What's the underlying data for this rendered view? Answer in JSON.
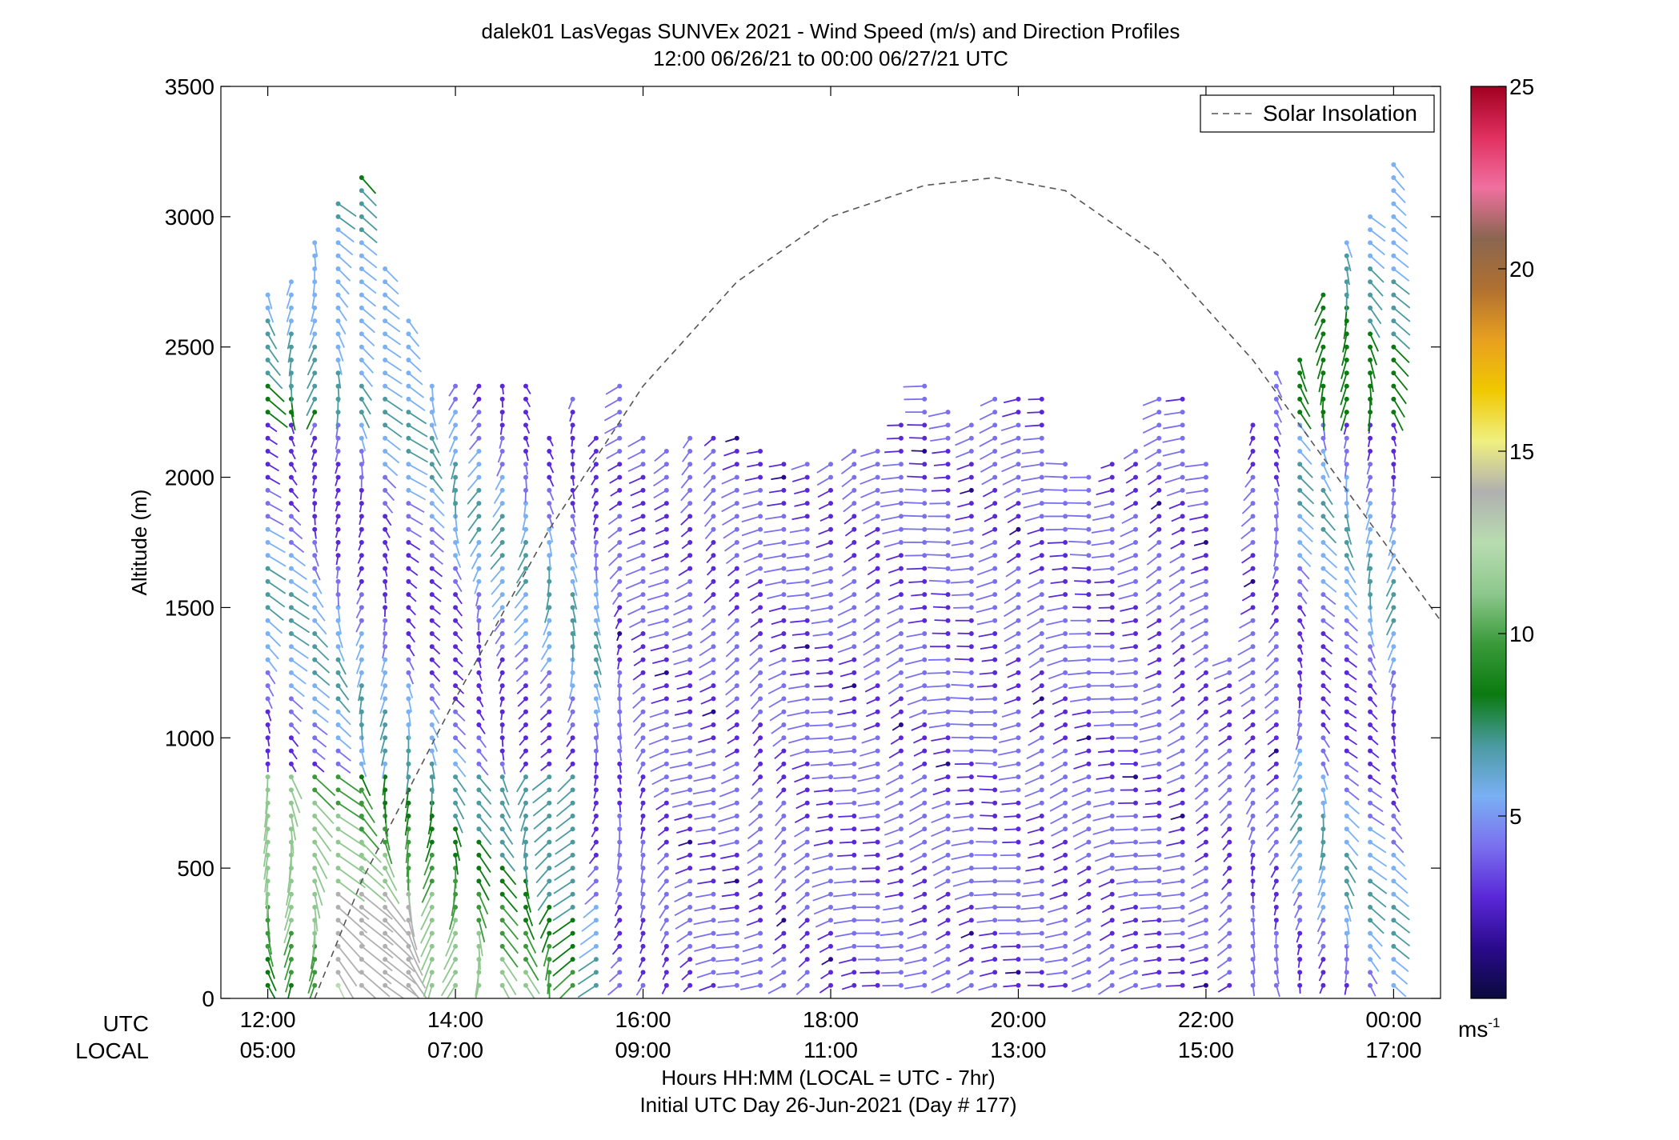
{
  "chart_data": {
    "type": "scatter",
    "title": "dalek01 LasVegas SUNVEx 2021 - Wind Speed (m/s) and Direction Profiles",
    "subtitle": "12:00 06/26/21 to 00:00 06/27/21  UTC",
    "ylabel": "Altitude (m)",
    "xlabel": "Hours HH:MM  (LOCAL = UTC - 7hr)",
    "xlabel2": "Initial UTC Day 26-Jun-2021 (Day # 177)",
    "row_labels": [
      "UTC",
      "LOCAL"
    ],
    "ylim": [
      0,
      3500
    ],
    "y_ticks": [
      "0",
      "500",
      "1000",
      "1500",
      "2000",
      "2500",
      "3000",
      "3500"
    ],
    "x_ticks_utc": [
      "12:00",
      "14:00",
      "16:00",
      "18:00",
      "20:00",
      "22:00",
      "00:00"
    ],
    "x_ticks_local": [
      "05:00",
      "07:00",
      "09:00",
      "11:00",
      "13:00",
      "15:00",
      "17:00"
    ],
    "x_range_hours": [
      11.5,
      24.5
    ],
    "legend": {
      "label": "Solar Insolation",
      "position": "top-right"
    },
    "colorbar": {
      "ticks": [
        "5",
        "10",
        "15",
        "20",
        "25"
      ],
      "range": [
        0,
        25
      ],
      "unit_label": "ms",
      "unit_exp": "-1",
      "stops": [
        "#0a0a3c",
        "#2a0a8c",
        "#5a28d8",
        "#7a70ee",
        "#7ab0f4",
        "#4a9aa0",
        "#0a7a10",
        "#3a9a3a",
        "#8ec88e",
        "#b8dcb0",
        "#b0b0b0",
        "#f0f080",
        "#f0c800",
        "#e8a020",
        "#b07030",
        "#8a6650",
        "#f070a0",
        "#e03060",
        "#a00020"
      ]
    },
    "profiles": [
      {
        "t": 12.0,
        "top": 2700,
        "dir": 160
      },
      {
        "t": 12.25,
        "top": 2750,
        "dir": 165
      },
      {
        "t": 12.5,
        "top": 2900,
        "dir": 170
      },
      {
        "t": 12.75,
        "top": 3050,
        "dir": 165
      },
      {
        "t": 13.0,
        "top": 3150,
        "dir": 170
      },
      {
        "t": 13.25,
        "top": 2800,
        "dir": 165
      },
      {
        "t": 13.5,
        "top": 2600,
        "dir": 160
      },
      {
        "t": 13.75,
        "top": 2350,
        "dir": 170
      },
      {
        "t": 14.0,
        "top": 2350,
        "dir": 175
      },
      {
        "t": 14.25,
        "top": 2350,
        "dir": 180
      },
      {
        "t": 14.5,
        "top": 2350,
        "dir": 180
      },
      {
        "t": 14.75,
        "top": 2350,
        "dir": 185
      },
      {
        "t": 15.0,
        "top": 2150,
        "dir": 190
      },
      {
        "t": 15.25,
        "top": 2300,
        "dir": 195
      },
      {
        "t": 15.5,
        "top": 2150,
        "dir": 195
      },
      {
        "t": 15.75,
        "top": 2350,
        "dir": 200
      },
      {
        "t": 16.0,
        "top": 2150,
        "dir": 210
      },
      {
        "t": 16.25,
        "top": 2100,
        "dir": 220
      },
      {
        "t": 16.5,
        "top": 2150,
        "dir": 225
      },
      {
        "t": 16.75,
        "top": 2150,
        "dir": 230
      },
      {
        "t": 17.0,
        "top": 2150,
        "dir": 235
      },
      {
        "t": 17.25,
        "top": 2100,
        "dir": 230
      },
      {
        "t": 17.5,
        "top": 2050,
        "dir": 230
      },
      {
        "t": 17.75,
        "top": 2050,
        "dir": 235
      },
      {
        "t": 18.0,
        "top": 2050,
        "dir": 240
      },
      {
        "t": 18.25,
        "top": 2100,
        "dir": 240
      },
      {
        "t": 18.5,
        "top": 2100,
        "dir": 245
      },
      {
        "t": 18.75,
        "top": 2200,
        "dir": 245
      },
      {
        "t": 19.0,
        "top": 2350,
        "dir": 250
      },
      {
        "t": 19.25,
        "top": 2250,
        "dir": 250
      },
      {
        "t": 19.5,
        "top": 2200,
        "dir": 250
      },
      {
        "t": 19.75,
        "top": 2300,
        "dir": 250
      },
      {
        "t": 20.0,
        "top": 2300,
        "dir": 245
      },
      {
        "t": 20.25,
        "top": 2300,
        "dir": 245
      },
      {
        "t": 20.5,
        "top": 2050,
        "dir": 250
      },
      {
        "t": 20.75,
        "top": 2000,
        "dir": 250
      },
      {
        "t": 21.0,
        "top": 2050,
        "dir": 245
      },
      {
        "t": 21.25,
        "top": 2100,
        "dir": 245
      },
      {
        "t": 21.5,
        "top": 2300,
        "dir": 240
      },
      {
        "t": 21.75,
        "top": 2300,
        "dir": 240
      },
      {
        "t": 22.0,
        "top": 2050,
        "dir": 235
      },
      {
        "t": 22.25,
        "top": 1300,
        "dir": 230
      },
      {
        "t": 22.5,
        "top": 2200,
        "dir": 200
      },
      {
        "t": 22.75,
        "top": 2400,
        "dir": 190
      },
      {
        "t": 23.0,
        "top": 2450,
        "dir": 175
      },
      {
        "t": 23.25,
        "top": 2700,
        "dir": 170
      },
      {
        "t": 23.5,
        "top": 2900,
        "dir": 165
      },
      {
        "t": 23.75,
        "top": 3000,
        "dir": 165
      },
      {
        "t": 24.0,
        "top": 3200,
        "dir": 170
      }
    ],
    "solar_insolation": {
      "x": [
        12.5,
        13.0,
        14.0,
        15.0,
        16.0,
        17.0,
        18.0,
        19.0,
        19.75,
        20.5,
        21.5,
        22.5,
        23.5,
        24.5
      ],
      "y": [
        0,
        450,
        1150,
        1800,
        2350,
        2750,
        3000,
        3120,
        3150,
        3100,
        2850,
        2450,
        1950,
        1450
      ]
    }
  }
}
